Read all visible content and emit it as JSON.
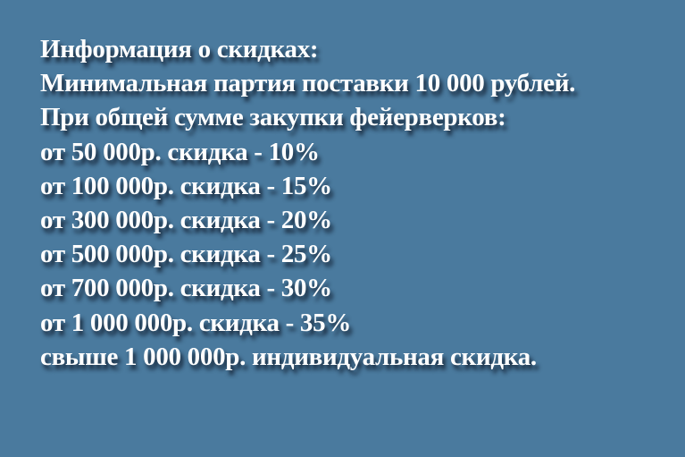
{
  "background_color": "#4a7a9e",
  "text_color": "#ffffff",
  "lines": [
    "Информация о скидках:",
    "Минимальная партия поставки 10 000 рублей.",
    "При общей сумме закупки фейерверков:",
    "от 50 000р. скидка - 10%",
    "от 100 000р. скидка - 15%",
    "от 300 000р. скидка - 20%",
    "от 500 000р. скидка - 25%",
    "от 700 000р. скидка - 30%",
    "от 1 000 000р. скидка - 35%",
    "свыше 1 000 000р. индивидуальная скидка."
  ]
}
